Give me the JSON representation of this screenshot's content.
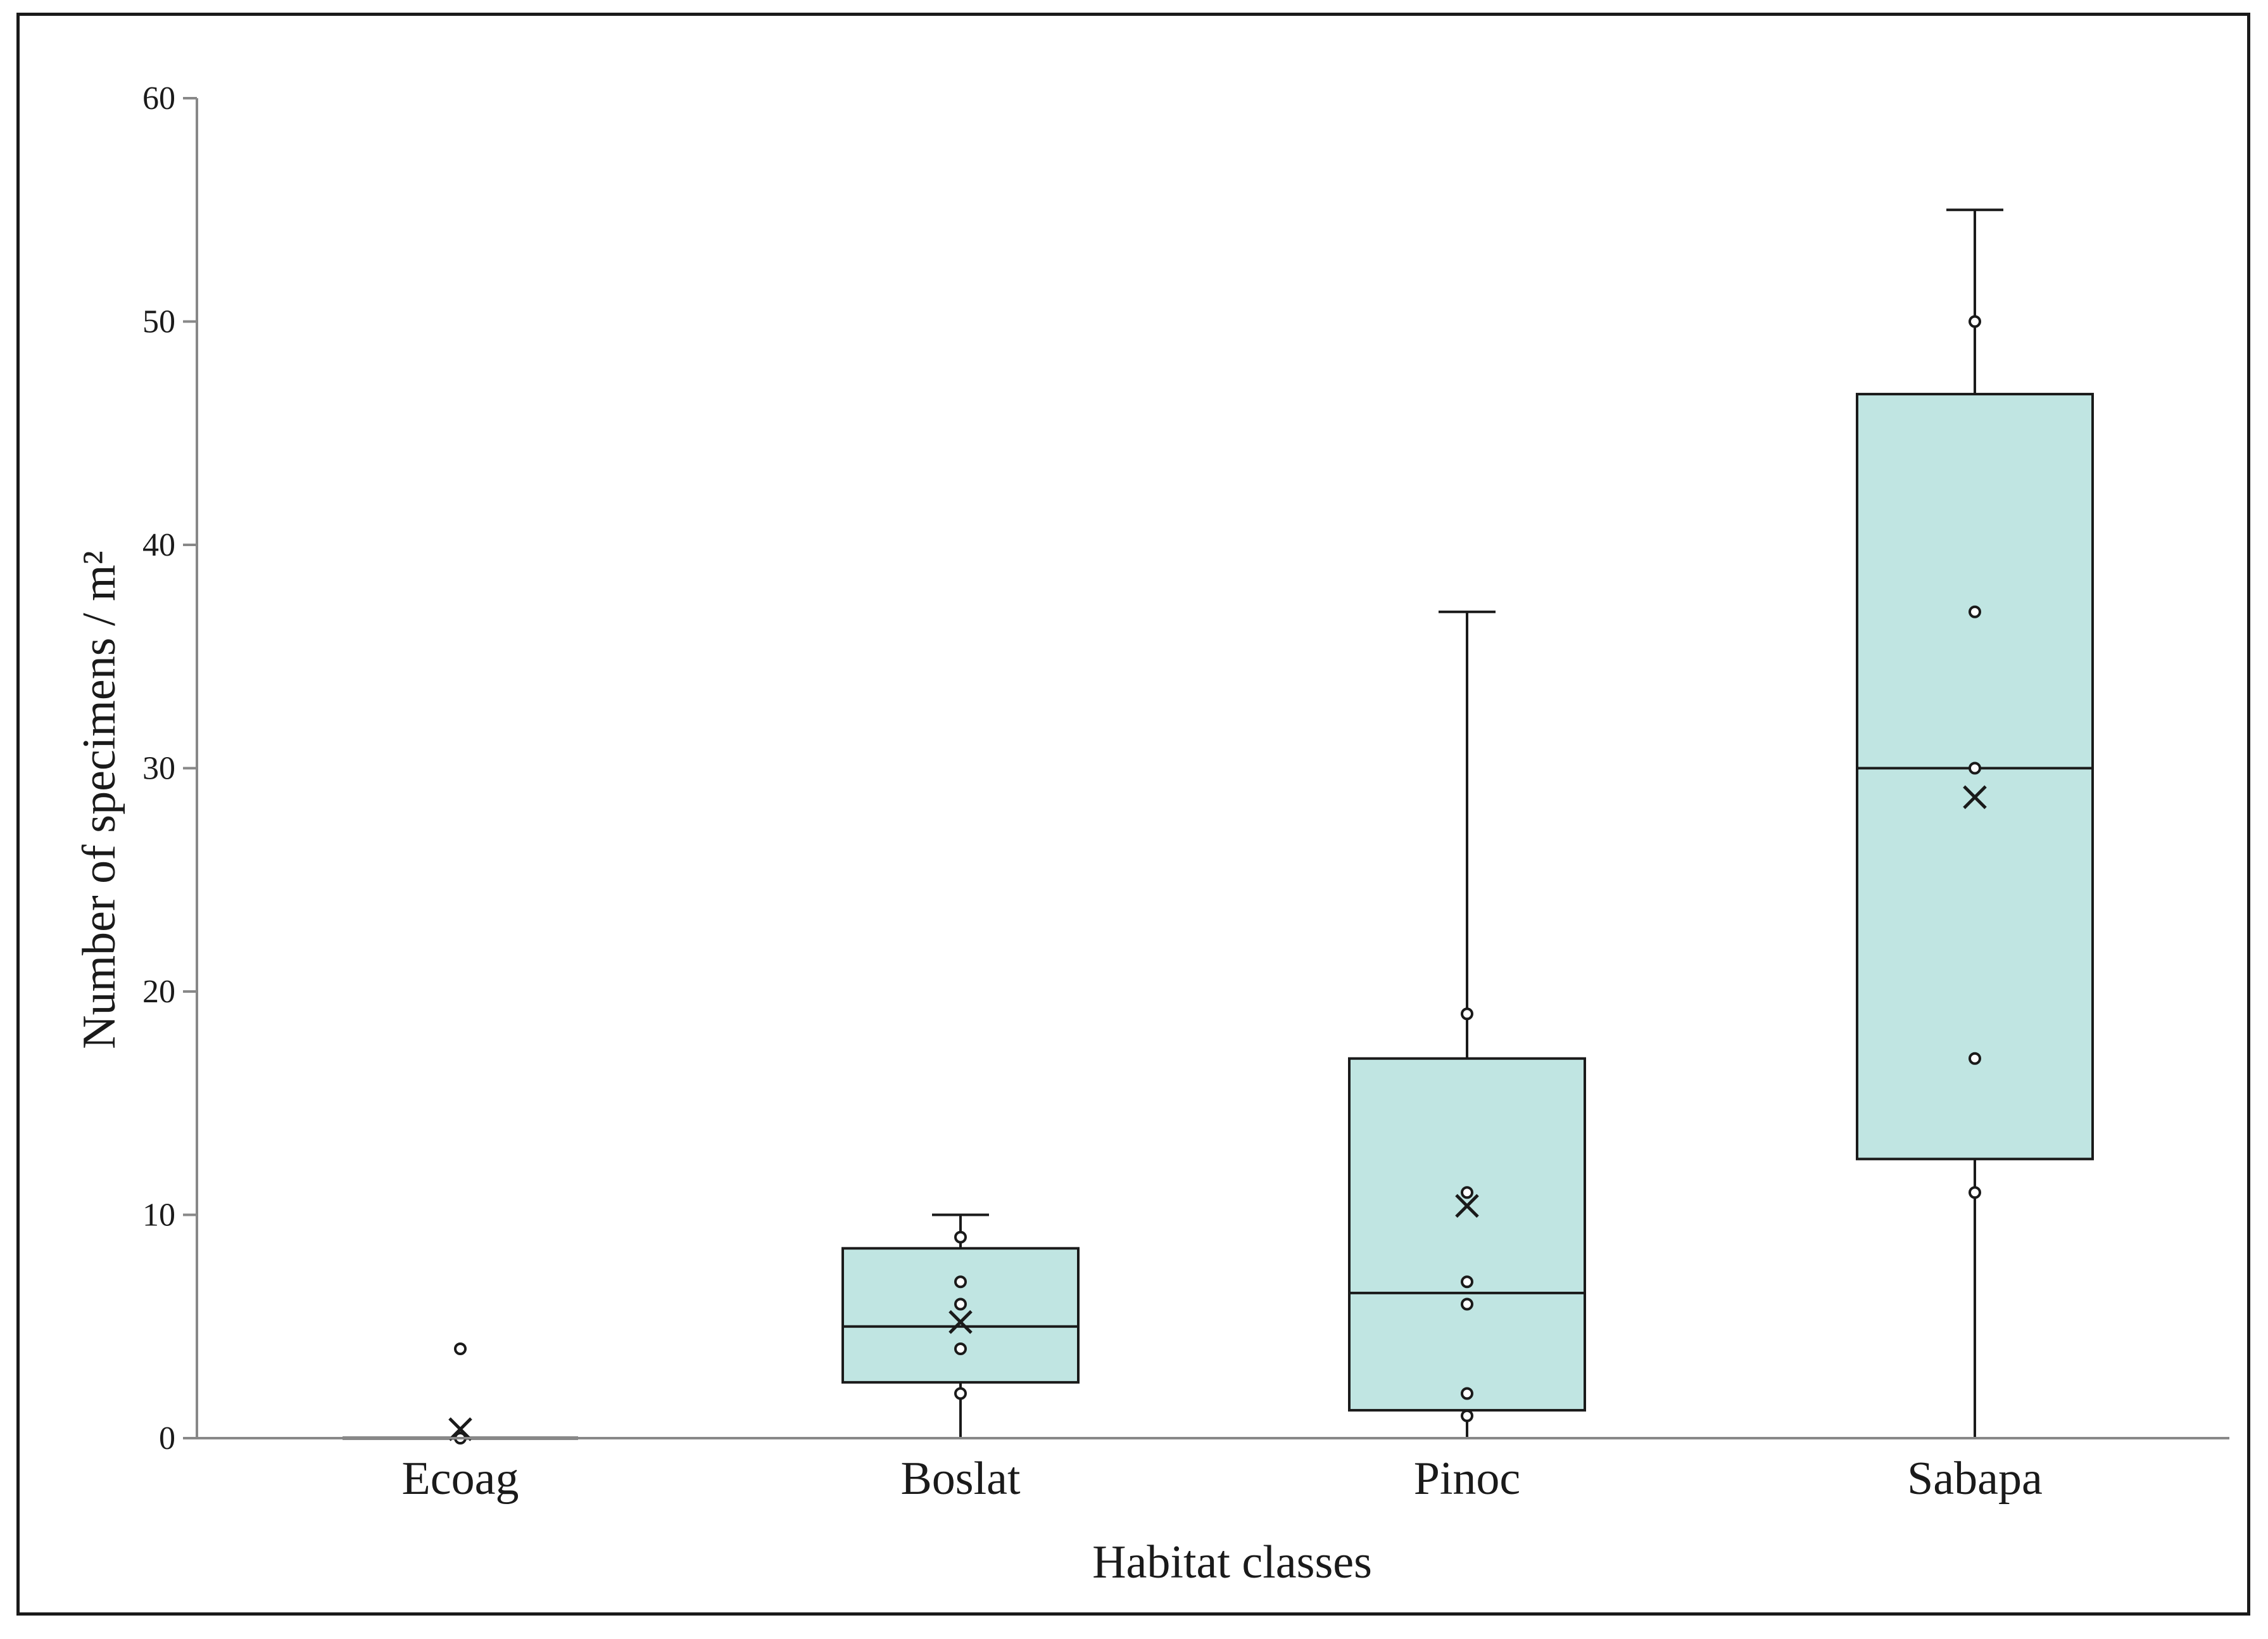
{
  "chart_data": {
    "type": "box",
    "xlabel": "Habitat classes",
    "ylabel": "Number of specimens / m²",
    "ylim": [
      0,
      60
    ],
    "yticks": [
      0,
      10,
      20,
      30,
      40,
      50,
      60
    ],
    "grid": false,
    "legend": "none",
    "colors": {
      "box_fill": "#c0e5e2",
      "stroke": "#1a1a1a",
      "axis": "#888888"
    },
    "categories": [
      "Ecoag",
      "Boslat",
      "Pinoc",
      "Sabapa"
    ],
    "boxes": [
      {
        "category": "Ecoag",
        "min": 0,
        "q1": 0,
        "median": 0,
        "q3": 0,
        "max": 0,
        "mean": 0.4,
        "points": [
          4,
          0
        ]
      },
      {
        "category": "Boslat",
        "min": 0,
        "q1": 2.5,
        "median": 5,
        "q3": 8.5,
        "max": 10,
        "mean": 5.2,
        "points": [
          9,
          7,
          6,
          4,
          2
        ]
      },
      {
        "category": "Pinoc",
        "min": 0,
        "q1": 1.25,
        "median": 6.5,
        "q3": 17,
        "max": 37,
        "mean": 10.4,
        "points": [
          19,
          11,
          7,
          6,
          2,
          1
        ]
      },
      {
        "category": "Sabapa",
        "min": 0,
        "q1": 12.5,
        "median": 30,
        "q3": 46.75,
        "max": 55,
        "mean": 28.7,
        "points": [
          50,
          37,
          30,
          17,
          11
        ]
      }
    ]
  }
}
